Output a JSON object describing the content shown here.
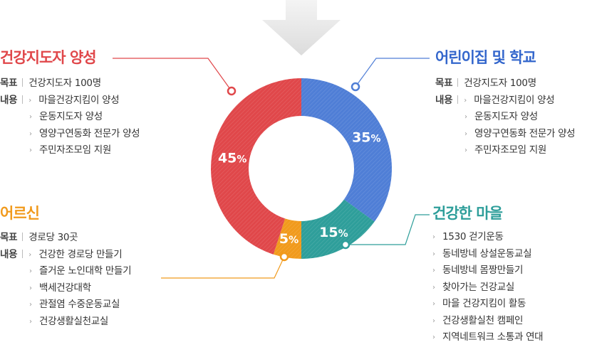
{
  "chart_data": {
    "type": "pie",
    "style": "donut",
    "values_percent": [
      {
        "label": "어린이집 및 학교",
        "value": 35,
        "display": "35%",
        "color": "#4f7ed6"
      },
      {
        "label": "건강한 마을",
        "value": 15,
        "display": "15%",
        "color": "#2e9e9a"
      },
      {
        "label": "어르신",
        "value": 5,
        "display": "5%",
        "color": "#f19a1c"
      },
      {
        "label": "건강지도자 양성",
        "value": 45,
        "display": "45%",
        "color": "#e0474a"
      }
    ]
  },
  "arrow_icon": "down-arrow-icon",
  "sections": {
    "leaders": {
      "title": "건강지도자 양성",
      "color": "#e0474a",
      "goal_label": "목표",
      "goal": "건강지도자 100명",
      "content_label": "내용",
      "items": [
        "마을건강지킴이 양성",
        "운동지도자 양성",
        "영양구연동화 전문가 양성",
        "주민자조모임 지원"
      ]
    },
    "elderly": {
      "title": "어르신",
      "color": "#f19a1c",
      "goal_label": "목표",
      "goal": "경로당 30곳",
      "content_label": "내용",
      "items": [
        "건강한 경로당 만들기",
        "즐거운 노인대학 만들기",
        "백세건강대학",
        "관절염 수중운동교실",
        "건강생활실천교실"
      ]
    },
    "school": {
      "title": "어린이집 및 학교",
      "color": "#3366cc",
      "goal_label": "목표",
      "goal": "건강지도자 100명",
      "content_label": "내용",
      "items": [
        "마을건강지킴이 양성",
        "운동지도자 양성",
        "영양구연동화 전문가 양성",
        "주민자조모임 지원"
      ]
    },
    "village": {
      "title": "건강한 마을",
      "color": "#2e9e9a",
      "items": [
        "1530 걷기운동",
        "동네방네 상설운동교실",
        "동네방네 몸짱만들기",
        "찾아가는 건강교실",
        "마을 건강지킴이 활동",
        "건강생활실천 캠페인",
        "지역네트워크 소통과 연대"
      ]
    }
  }
}
